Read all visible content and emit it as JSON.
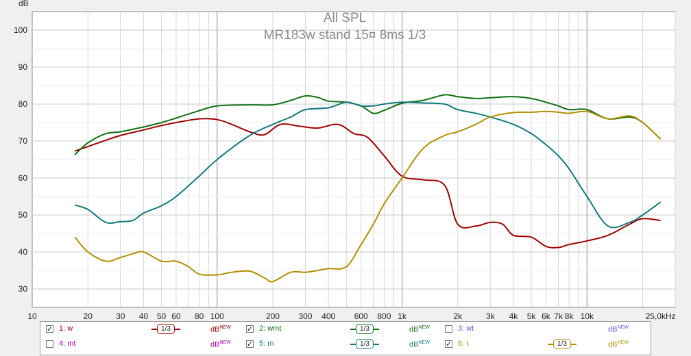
{
  "chart_data": {
    "type": "line",
    "title": "All SPL",
    "subtitle": "MR183w stand 15¤ 8ms 1/3",
    "ylabel": "dB",
    "xunit": "kHz",
    "x_scale": "log",
    "xlim": [
      10,
      30000
    ],
    "ylim": [
      25,
      105
    ],
    "grid": true,
    "ytick_labels": [
      "100",
      "90",
      "80",
      "70",
      "60",
      "50",
      "40",
      "30"
    ],
    "yticks": [
      100,
      90,
      80,
      70,
      60,
      50,
      40,
      30
    ],
    "xticks": [
      10,
      20,
      30,
      40,
      50,
      60,
      80,
      100,
      200,
      300,
      400,
      600,
      800,
      1000,
      2000,
      3000,
      4000,
      5000,
      6000,
      7000,
      8000,
      10000,
      25000
    ],
    "xtick_labels": [
      "10",
      "20",
      "30",
      "40",
      "50",
      "60",
      "80",
      "100",
      "200",
      "300",
      "400",
      "600",
      "800",
      "1k",
      "2k",
      "3k",
      "4k",
      "5k",
      "6k",
      "7k",
      "8k",
      "10k",
      "25,0kHz"
    ],
    "series": [
      {
        "name": "1: w",
        "color": "#a00000",
        "x": [
          17,
          20,
          25,
          30,
          40,
          50,
          60,
          80,
          100,
          120,
          150,
          180,
          220,
          280,
          350,
          450,
          550,
          650,
          800,
          1000,
          1300,
          1700,
          2000,
          2500,
          3000,
          3500,
          4000,
          5000,
          6000,
          7000,
          8000,
          10000,
          13000,
          17000,
          20000,
          25000
        ],
        "y": [
          67.3,
          68.5,
          70.2,
          71.5,
          73.0,
          74.2,
          75.0,
          76.0,
          75.8,
          74.5,
          72.5,
          71.7,
          74.5,
          74.0,
          73.5,
          74.5,
          72.0,
          71.0,
          66.0,
          60.5,
          59.5,
          58.0,
          47.5,
          47.0,
          48.0,
          47.5,
          44.5,
          44.0,
          41.5,
          41.2,
          42.0,
          43.0,
          44.5,
          47.5,
          49.0,
          48.5
        ]
      },
      {
        "name": "2: wmt",
        "color": "#107010",
        "x": [
          17,
          20,
          25,
          30,
          40,
          50,
          60,
          80,
          100,
          150,
          200,
          250,
          300,
          350,
          400,
          500,
          600,
          700,
          800,
          1000,
          1300,
          1700,
          2000,
          2500,
          3000,
          4000,
          5000,
          6000,
          7000,
          8000,
          10000,
          13000,
          17000,
          20000,
          25000
        ],
        "y": [
          66.3,
          69.5,
          72.0,
          72.5,
          73.8,
          75.0,
          76.2,
          78.2,
          79.5,
          79.8,
          79.8,
          81.0,
          82.2,
          81.8,
          80.8,
          80.5,
          79.5,
          77.5,
          78.3,
          80.2,
          81.0,
          82.5,
          82.0,
          81.5,
          81.7,
          82.0,
          81.5,
          80.5,
          79.5,
          78.5,
          78.5,
          76.0,
          76.5,
          75.0,
          70.5
        ]
      },
      {
        "name": "3: wt",
        "color": "#5a5ad0",
        "x": [],
        "y": []
      },
      {
        "name": "4: mt",
        "color": "#a000a0",
        "x": [],
        "y": []
      },
      {
        "name": "5: m",
        "color": "#107a80",
        "x": [
          17,
          20,
          25,
          30,
          35,
          40,
          50,
          60,
          80,
          100,
          150,
          200,
          250,
          300,
          400,
          500,
          600,
          700,
          800,
          1000,
          1300,
          1700,
          2000,
          2500,
          3000,
          4000,
          5000,
          6000,
          7000,
          8000,
          10000,
          13000,
          17000,
          20000,
          25000
        ],
        "y": [
          52.7,
          51.5,
          48.0,
          48.2,
          48.5,
          50.5,
          52.5,
          55.0,
          60.5,
          65.0,
          71.5,
          74.5,
          76.5,
          78.5,
          79.0,
          80.5,
          79.5,
          79.5,
          80.0,
          80.5,
          80.3,
          80.0,
          78.5,
          77.5,
          76.5,
          74.5,
          72.0,
          69.0,
          66.0,
          62.5,
          55.0,
          47.0,
          48.0,
          50.0,
          53.5
        ]
      },
      {
        "name": "6: t",
        "color": "#b09000",
        "x": [
          17,
          20,
          25,
          30,
          35,
          40,
          50,
          60,
          70,
          80,
          100,
          120,
          150,
          180,
          200,
          250,
          300,
          350,
          400,
          500,
          600,
          700,
          800,
          1000,
          1300,
          1700,
          2000,
          2500,
          3000,
          4000,
          5000,
          6000,
          7000,
          8000,
          10000,
          13000,
          17000,
          20000,
          25000
        ],
        "y": [
          44.0,
          40.0,
          37.5,
          38.5,
          39.5,
          40.0,
          37.5,
          37.5,
          36.0,
          34.0,
          33.8,
          34.5,
          34.8,
          33.0,
          32.0,
          34.5,
          34.5,
          35.0,
          35.5,
          36.0,
          42.0,
          47.5,
          53.0,
          60.0,
          68.0,
          71.5,
          72.5,
          74.5,
          76.5,
          77.7,
          77.8,
          78.0,
          77.8,
          77.5,
          78.0,
          76.0,
          76.8,
          75.0,
          70.5
        ]
      }
    ]
  },
  "legend": [
    {
      "label": "1: w",
      "checked": "✓",
      "third": "1/3",
      "db": "dB",
      "new": "NEW",
      "color": "#a00000"
    },
    {
      "label": "2: wmt",
      "checked": "✓",
      "third": "1/3",
      "db": "dB",
      "new": "NEW",
      "color": "#107010"
    },
    {
      "label": "3: wt",
      "checked": "",
      "third": "",
      "db": "dB",
      "new": "NEW",
      "color": "#5a5ad0"
    },
    {
      "label": "4: mt",
      "checked": "",
      "third": "",
      "db": "dB",
      "new": "NEW",
      "color": "#a000a0"
    },
    {
      "label": "5: m",
      "checked": "✓",
      "third": "1/3",
      "db": "dB",
      "new": "NEW",
      "color": "#107a80"
    },
    {
      "label": "6: t",
      "checked": "✓",
      "third": "1/3",
      "db": "dB",
      "new": "NEW",
      "color": "#b09000"
    }
  ]
}
